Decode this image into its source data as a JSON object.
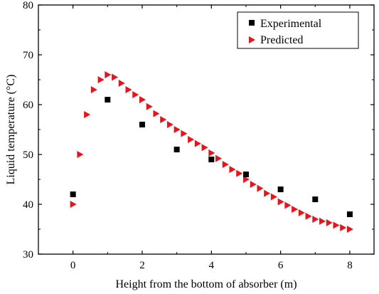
{
  "chart_data": {
    "type": "scatter",
    "xlabel": "Height from the bottom of absorber (m)",
    "ylabel": "Liquid temperature (°C)",
    "xlim": [
      -1,
      8.7
    ],
    "ylim": [
      30,
      80
    ],
    "xticks": [
      0,
      2,
      4,
      6,
      8
    ],
    "yticks": [
      30,
      40,
      50,
      60,
      70,
      80
    ],
    "grid": false,
    "legend_position": "top-right",
    "series": [
      {
        "name": "Experimental",
        "marker": "square",
        "color": "#000000",
        "x": [
          0,
          1,
          2,
          3,
          4,
          5,
          6,
          7,
          8
        ],
        "y": [
          42,
          61,
          56,
          51,
          49,
          46,
          43,
          41,
          38
        ]
      },
      {
        "name": "Predicted",
        "marker": "triangle-right",
        "color": "#e8141c",
        "x": [
          0,
          0.2,
          0.4,
          0.6,
          0.8,
          1.0,
          1.2,
          1.4,
          1.6,
          1.8,
          2.0,
          2.2,
          2.4,
          2.6,
          2.8,
          3.0,
          3.2,
          3.4,
          3.6,
          3.8,
          4.0,
          4.2,
          4.4,
          4.6,
          4.8,
          5.0,
          5.2,
          5.4,
          5.6,
          5.8,
          6.0,
          6.2,
          6.4,
          6.6,
          6.8,
          7.0,
          7.2,
          7.4,
          7.6,
          7.8,
          8.0
        ],
        "y": [
          40,
          50,
          58,
          63,
          65,
          66,
          65.5,
          64.3,
          63,
          62,
          61,
          59.6,
          58.2,
          57,
          56,
          55,
          54.2,
          53,
          52.2,
          51.4,
          50.3,
          49.2,
          48,
          47,
          46.2,
          45,
          44,
          43.2,
          42.2,
          41.5,
          40.5,
          39.8,
          39,
          38.3,
          37.6,
          37,
          36.6,
          36.3,
          35.8,
          35.3,
          35
        ]
      }
    ]
  }
}
